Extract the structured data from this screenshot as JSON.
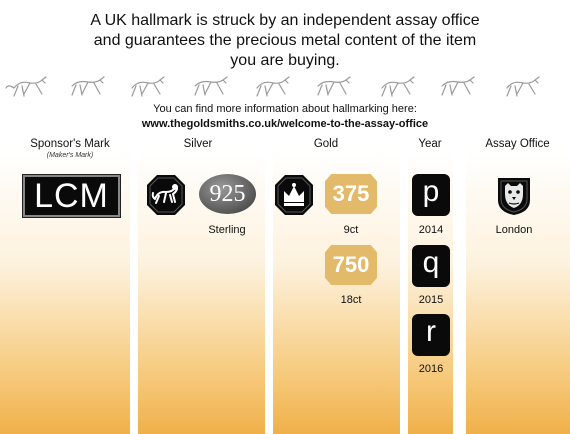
{
  "intro": {
    "line1": "A UK hallmark is struck by an independent assay office",
    "line2": "and guarantees the precious metal content of the item",
    "line3": "you are buying."
  },
  "info": {
    "text": "You can find more information about hallmarking here:",
    "url": "www.thegoldsmiths.co.uk/welcome-to-the-assay-office"
  },
  "columns": {
    "sponsor": {
      "title": "Sponsor's Mark",
      "subtitle": "(Maker's Mark)"
    },
    "silver": {
      "title": "Silver"
    },
    "gold": {
      "title": "Gold"
    },
    "year": {
      "title": "Year"
    },
    "office": {
      "title": "Assay Office"
    }
  },
  "marks": {
    "sponsor_text": "LCM",
    "silver_fineness": "925",
    "silver_caption": "Sterling",
    "gold_9": "375",
    "gold_9_caption": "9ct",
    "gold_18": "750",
    "gold_18_caption": "18ct",
    "year_letters": [
      {
        "letter": "p",
        "year": "2014"
      },
      {
        "letter": "q",
        "year": "2015"
      },
      {
        "letter": "r",
        "year": "2016"
      }
    ],
    "office_caption": "London"
  },
  "colors": {
    "gold_mark": "#e3b96a",
    "stripe_gold": "#f0b04a",
    "silver_oval": "#555555",
    "mark_black": "#0a0a0a"
  }
}
